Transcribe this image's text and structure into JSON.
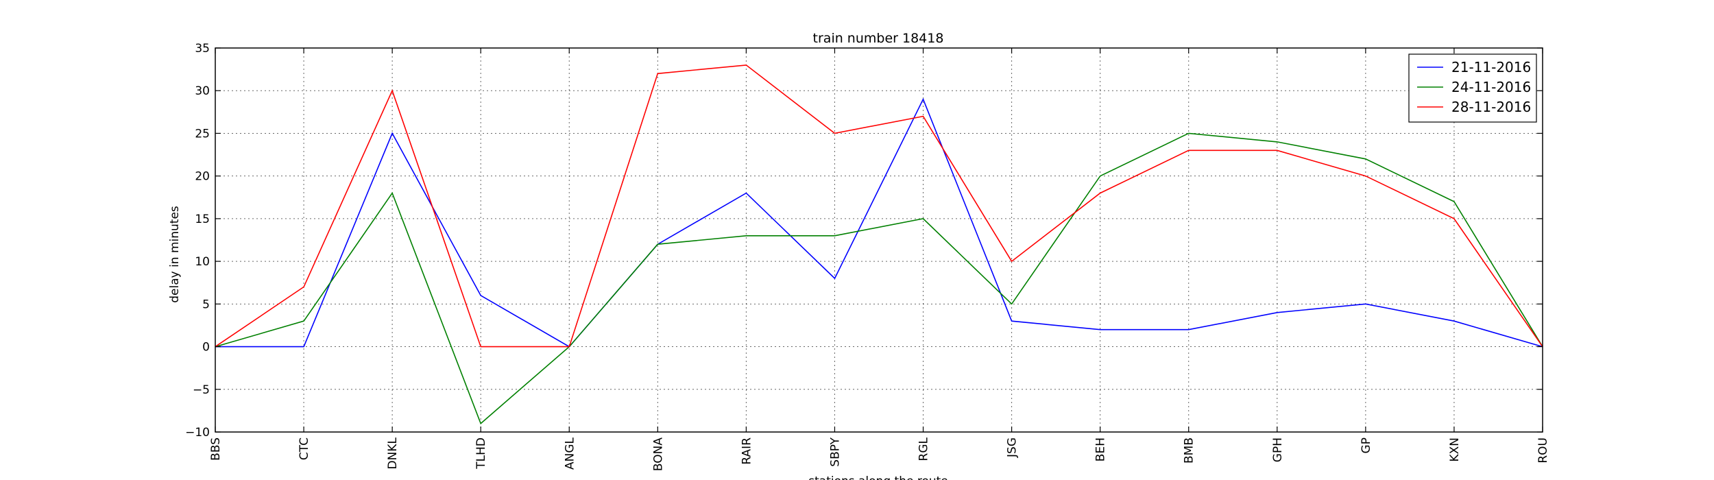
{
  "chart_data": {
    "type": "line",
    "title": "train number 18418",
    "xlabel": "stations along the route",
    "ylabel": "delay in minutes",
    "categories": [
      "BBS",
      "CTC",
      "DNKL",
      "TLHD",
      "ANGL",
      "BONA",
      "RAIR",
      "SBPY",
      "RGL",
      "JSG",
      "BEH",
      "BMB",
      "GPH",
      "GP",
      "KXN",
      "ROU"
    ],
    "ylim": [
      -10,
      35
    ],
    "yticks": [
      -10,
      -5,
      0,
      5,
      10,
      15,
      20,
      25,
      30,
      35
    ],
    "ytick_labels": [
      "−10",
      "−5",
      "0",
      "5",
      "10",
      "15",
      "20",
      "25",
      "30",
      "35"
    ],
    "grid": true,
    "legend_position": "top-right",
    "series": [
      {
        "name": "21-11-2016",
        "color": "#0000ff",
        "values": [
          0,
          0,
          25,
          6,
          0,
          12,
          18,
          8,
          29,
          3,
          2,
          2,
          4,
          5,
          3,
          0
        ]
      },
      {
        "name": "24-11-2016",
        "color": "#008000",
        "values": [
          0,
          3,
          18,
          -9,
          0,
          12,
          13,
          13,
          15,
          5,
          20,
          25,
          24,
          22,
          17,
          0
        ]
      },
      {
        "name": "28-11-2016",
        "color": "#ff0000",
        "values": [
          0,
          7,
          30,
          0,
          0,
          32,
          33,
          25,
          27,
          10,
          18,
          23,
          23,
          20,
          15,
          0
        ]
      }
    ]
  }
}
